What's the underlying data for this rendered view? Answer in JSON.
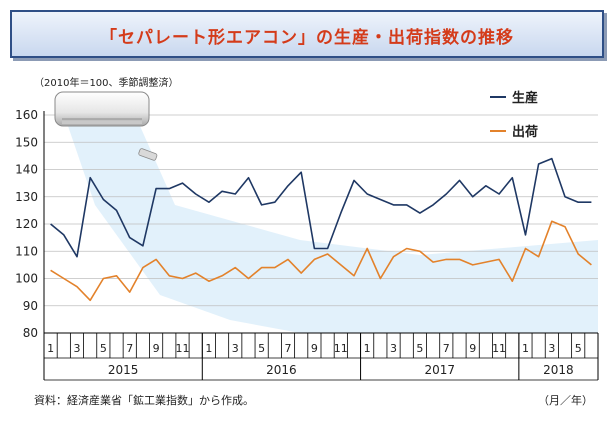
{
  "header": {
    "title": "「セパレート形エアコン」の生産・出荷指数の推移"
  },
  "notes": {
    "index_base": "（2010年＝100、季節調整済）",
    "source": "資料：経済産業省「鉱工業指数」から作成。",
    "unit": "（月／年）"
  },
  "chart_data": {
    "type": "line",
    "x": [
      "2015-01",
      "2015-02",
      "2015-03",
      "2015-04",
      "2015-05",
      "2015-06",
      "2015-07",
      "2015-08",
      "2015-09",
      "2015-10",
      "2015-11",
      "2015-12",
      "2016-01",
      "2016-02",
      "2016-03",
      "2016-04",
      "2016-05",
      "2016-06",
      "2016-07",
      "2016-08",
      "2016-09",
      "2016-10",
      "2016-11",
      "2016-12",
      "2017-01",
      "2017-02",
      "2017-03",
      "2017-04",
      "2017-05",
      "2017-06",
      "2017-07",
      "2017-08",
      "2017-09",
      "2017-10",
      "2017-11",
      "2017-12",
      "2018-01",
      "2018-02",
      "2018-03",
      "2018-04",
      "2018-05",
      "2018-06"
    ],
    "series": [
      {
        "name": "生産",
        "color": "#1f3864",
        "values": [
          120,
          116,
          108,
          137,
          129,
          125,
          115,
          112,
          133,
          133,
          135,
          131,
          128,
          132,
          131,
          137,
          127,
          128,
          134,
          139,
          111,
          111,
          124,
          136,
          131,
          129,
          127,
          127,
          124,
          127,
          131,
          136,
          130,
          134,
          131,
          137,
          116,
          142,
          144,
          130,
          128,
          128
        ]
      },
      {
        "name": "出荷",
        "color": "#e3822b",
        "values": [
          103,
          100,
          97,
          92,
          100,
          101,
          95,
          104,
          107,
          101,
          100,
          102,
          99,
          101,
          104,
          100,
          104,
          104,
          107,
          102,
          107,
          109,
          105,
          101,
          111,
          100,
          108,
          111,
          110,
          106,
          107,
          107,
          105,
          106,
          107,
          99,
          111,
          108,
          121,
          119,
          109,
          105
        ]
      }
    ],
    "ylim": [
      80,
      160
    ],
    "yticks": [
      80,
      90,
      100,
      110,
      120,
      130,
      140,
      150,
      160
    ],
    "xtick_labels": [
      "1",
      "3",
      "5",
      "7",
      "9",
      "11",
      "1",
      "3",
      "5",
      "7",
      "9",
      "11",
      "1",
      "3",
      "5",
      "7",
      "9",
      "11",
      "1",
      "3",
      "5"
    ],
    "years": [
      "2015",
      "2016",
      "2017",
      "2018"
    ],
    "legend_position": "top-right",
    "grid": "horizontal",
    "decoration": {
      "image": "air-conditioner-unit",
      "remote": "remote-control",
      "airflow_color": "#ddeefa"
    }
  }
}
